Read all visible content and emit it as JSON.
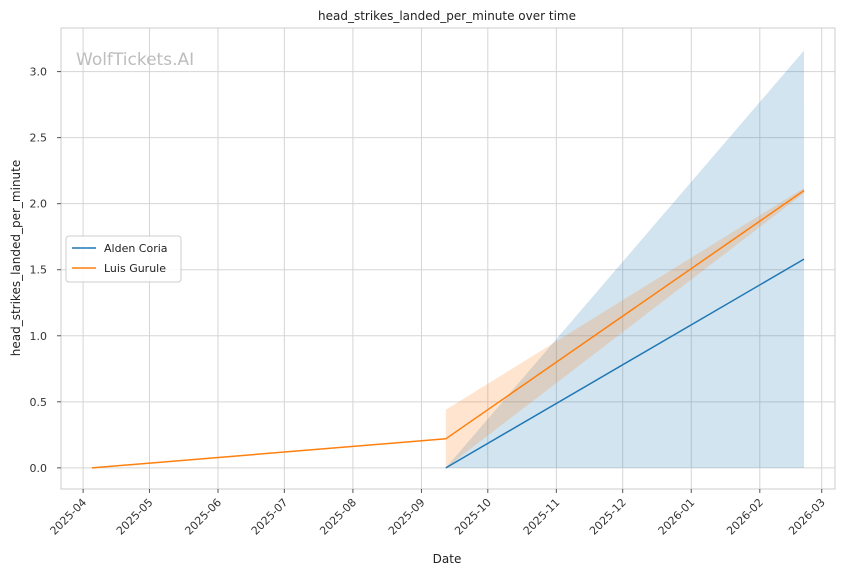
{
  "chart_data": {
    "type": "line",
    "title": "head_strikes_landed_per_minute over time",
    "xlabel": "Date",
    "ylabel": "head_strikes_landed_per_minute",
    "watermark": "WolfTickets.AI",
    "x_ticks": [
      "2025-04",
      "2025-05",
      "2025-06",
      "2025-07",
      "2025-08",
      "2025-09",
      "2025-10",
      "2025-11",
      "2025-12",
      "2026-01",
      "2026-02",
      "2026-03"
    ],
    "y_ticks": [
      "0.0",
      "0.5",
      "1.0",
      "1.5",
      "2.0",
      "2.5",
      "3.0"
    ],
    "xlim": [
      "2025-03-22",
      "2026-03-07"
    ],
    "ylim": [
      -0.16,
      3.33
    ],
    "grid": true,
    "legend_position": "center-left",
    "series": [
      {
        "name": "Alden Coria",
        "color": "#1f77b4",
        "points": [
          {
            "x": "2025-09-12",
            "y": 0.0
          },
          {
            "x": "2026-02-21",
            "y": 1.58
          }
        ],
        "band": [
          {
            "x": "2025-09-12",
            "lower": 0.0,
            "upper": 0.0
          },
          {
            "x": "2026-02-21",
            "lower": 0.0,
            "upper": 3.16
          }
        ]
      },
      {
        "name": "Luis Gurule",
        "color": "#ff7f0e",
        "points": [
          {
            "x": "2025-04-05",
            "y": 0.0
          },
          {
            "x": "2025-09-12",
            "y": 0.22
          },
          {
            "x": "2026-02-21",
            "y": 2.1
          }
        ],
        "band": [
          {
            "x": "2025-09-12",
            "lower": 0.0,
            "upper": 0.44
          },
          {
            "x": "2026-02-21",
            "lower": 2.08,
            "upper": 2.12
          }
        ]
      }
    ]
  }
}
